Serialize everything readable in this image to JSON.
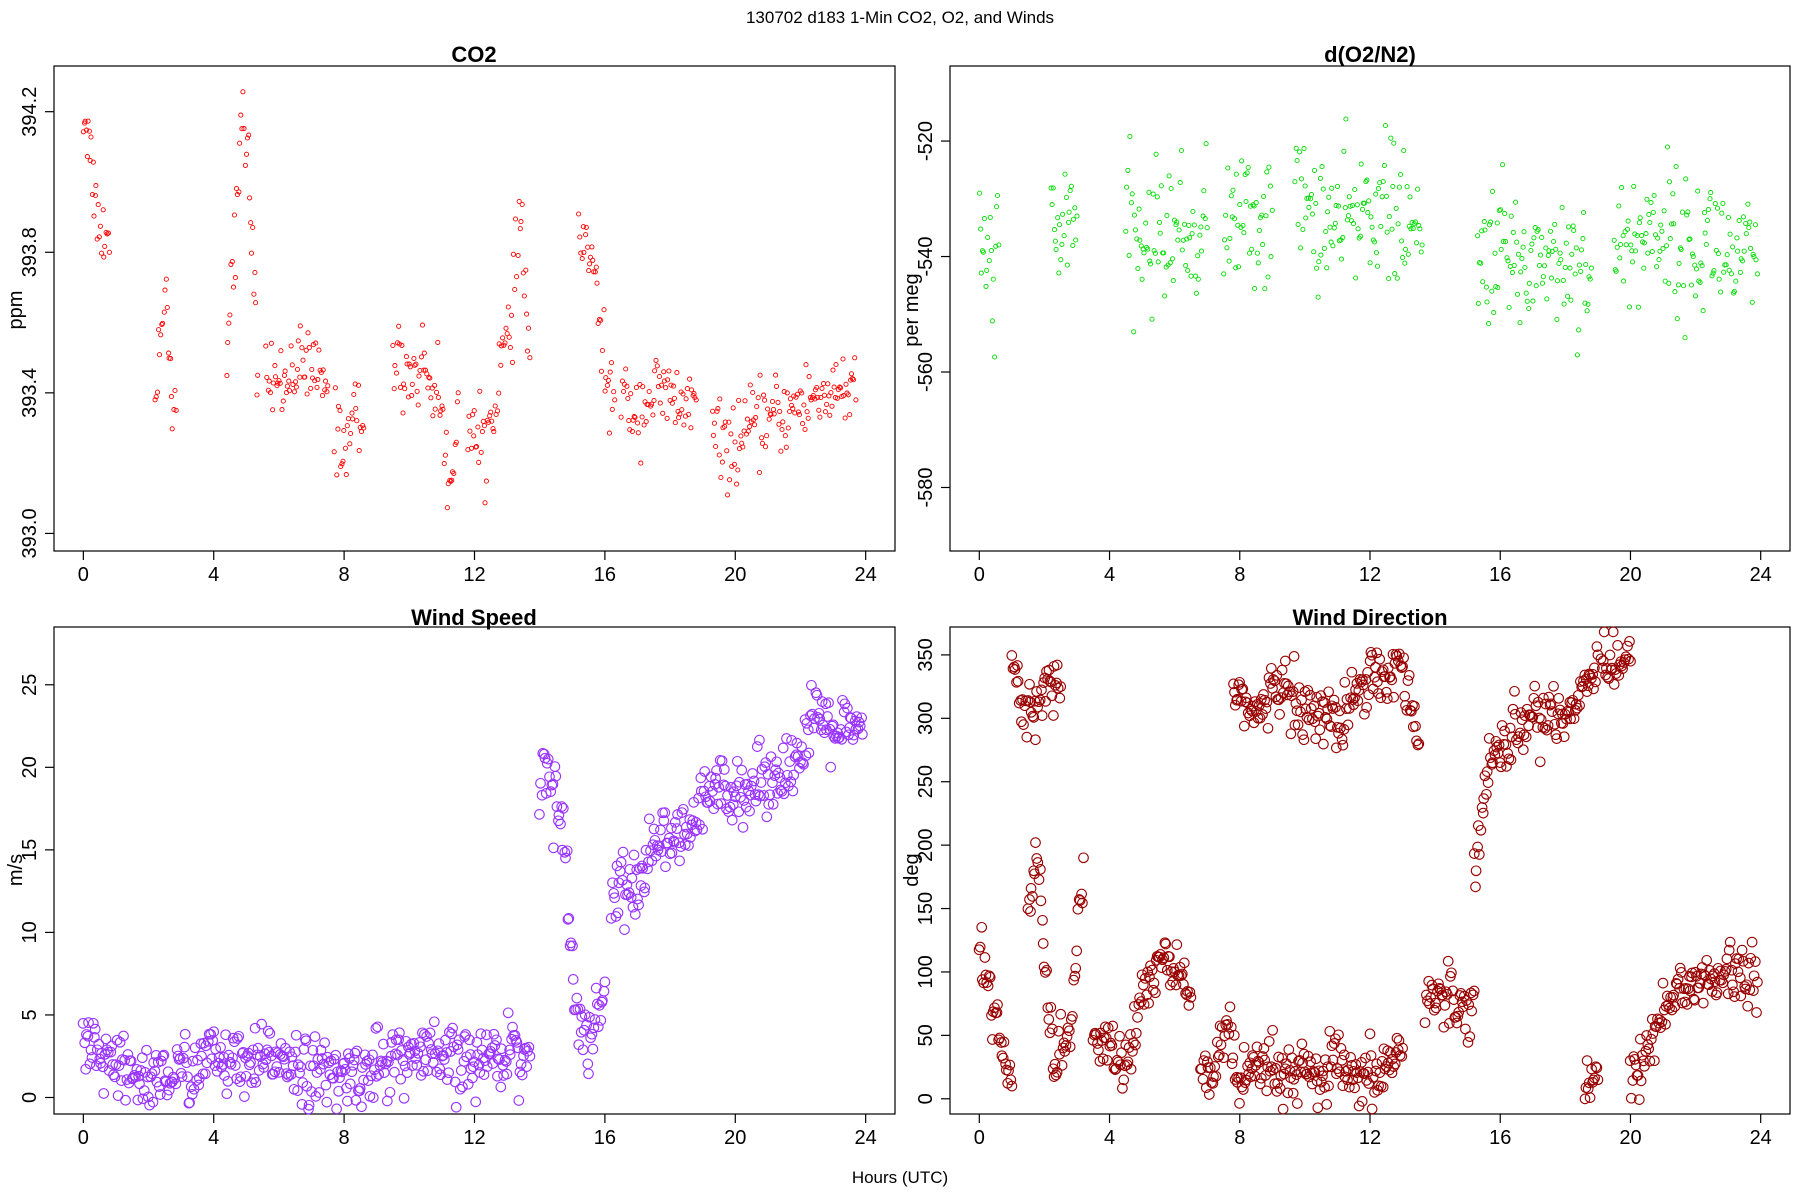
{
  "figure": {
    "title": "130702   d183   1-Min CO2, O2, and Winds",
    "xlabel": "Hours (UTC)"
  },
  "chart_data": [
    {
      "type": "scatter",
      "title": "CO2",
      "xlabel": "Hours (UTC)",
      "ylabel": "ppm",
      "xlim": [
        -0.9,
        24.9
      ],
      "ylim": [
        392.95,
        394.33
      ],
      "xticks": [
        0,
        4,
        8,
        12,
        16,
        20,
        24
      ],
      "yticks": [
        393.0,
        393.4,
        393.8,
        394.2
      ],
      "ytick_labels": [
        "393.0",
        "393.4",
        "393.8",
        "394.2"
      ],
      "color": "#ff0000",
      "marker_size": "small",
      "segments": [
        {
          "x": [
            0.0,
            0.15,
            0.3,
            0.45,
            0.6,
            0.8
          ],
          "y": [
            394.2,
            394.15,
            394.0,
            393.9,
            393.85,
            393.8
          ]
        },
        {
          "x": [
            2.2,
            2.4,
            2.55,
            2.7,
            2.85
          ],
          "y": [
            393.45,
            393.6,
            393.7,
            393.4,
            393.35
          ]
        },
        {
          "x": [
            4.4,
            4.7,
            4.9,
            5.1,
            5.35
          ],
          "y": [
            393.55,
            393.9,
            394.2,
            394.0,
            393.45
          ]
        },
        {
          "x": [
            5.6,
            6.0,
            6.5,
            7.0,
            7.5
          ],
          "y": [
            393.45,
            393.42,
            393.48,
            393.46,
            393.42
          ]
        },
        {
          "x": [
            7.7,
            8.0,
            8.3,
            8.6
          ],
          "y": [
            393.3,
            393.25,
            393.35,
            393.3
          ]
        },
        {
          "x": [
            9.5,
            10.0,
            10.5,
            11.0,
            11.2,
            11.5
          ],
          "y": [
            393.5,
            393.45,
            393.48,
            393.35,
            393.1,
            393.4
          ]
        },
        {
          "x": [
            11.8,
            12.1,
            12.5,
            12.8,
            13.1,
            13.4,
            13.7
          ],
          "y": [
            393.3,
            393.25,
            393.3,
            393.5,
            393.55,
            393.9,
            393.5
          ]
        },
        {
          "x": [
            15.2,
            15.5,
            15.8,
            16.0,
            16.3
          ],
          "y": [
            393.85,
            393.8,
            393.65,
            393.45,
            393.38
          ]
        },
        {
          "x": [
            16.5,
            17.0,
            17.5,
            18.0,
            18.5,
            18.8
          ],
          "y": [
            393.38,
            393.35,
            393.4,
            393.38,
            393.36,
            393.38
          ]
        },
        {
          "x": [
            19.3,
            19.8,
            20.3,
            20.8,
            21.3,
            21.8,
            22.3,
            22.8,
            23.3,
            23.7
          ],
          "y": [
            393.28,
            393.24,
            393.28,
            393.32,
            393.33,
            393.36,
            393.38,
            393.4,
            393.42,
            393.38
          ]
        }
      ]
    },
    {
      "type": "scatter",
      "title": "d(O2/N2)",
      "xlabel": "Hours (UTC)",
      "ylabel": "per meg",
      "xlim": [
        -0.9,
        24.9
      ],
      "ylim": [
        -591,
        -507
      ],
      "xticks": [
        0,
        4,
        8,
        12,
        16,
        20,
        24
      ],
      "yticks": [
        -520,
        -540,
        -560,
        -580
      ],
      "ytick_labels": [
        "-520",
        "-540",
        "-560",
        "-580"
      ],
      "color": "#00dd00",
      "marker_size": "small",
      "segments": [
        {
          "x": [
            0.0,
            0.2,
            0.4,
            0.6
          ],
          "y": [
            -538,
            -540,
            -542,
            -538
          ]
        },
        {
          "x": [
            2.2,
            2.5,
            2.8,
            3.0
          ],
          "y": [
            -535,
            -538,
            -530,
            -533
          ]
        },
        {
          "x": [
            4.5,
            5.0,
            5.5,
            6.0,
            6.5,
            7.0
          ],
          "y": [
            -537,
            -538,
            -536,
            -535,
            -537,
            -535
          ]
        },
        {
          "x": [
            7.5,
            8.0,
            8.5,
            9.0
          ],
          "y": [
            -534,
            -533,
            -535,
            -532
          ]
        },
        {
          "x": [
            9.7,
            10.2,
            10.7,
            11.2,
            11.7,
            12.2,
            12.7,
            13.2,
            13.6
          ],
          "y": [
            -530,
            -532,
            -534,
            -535,
            -533,
            -530,
            -532,
            -536,
            -538
          ]
        },
        {
          "x": [
            15.3,
            15.8,
            16.3,
            16.8,
            17.3,
            17.8,
            18.3,
            18.8
          ],
          "y": [
            -542,
            -538,
            -540,
            -542,
            -539,
            -541,
            -540,
            -542
          ]
        },
        {
          "x": [
            19.5,
            20.0,
            20.5,
            21.0,
            21.5,
            22.0,
            22.5,
            23.0,
            23.5,
            23.9
          ],
          "y": [
            -540,
            -538,
            -536,
            -534,
            -538,
            -540,
            -536,
            -540,
            -541,
            -543
          ]
        }
      ]
    },
    {
      "type": "scatter",
      "title": "Wind Speed",
      "xlabel": "Hours (UTC)",
      "ylabel": "m/s",
      "xlim": [
        -0.9,
        24.9
      ],
      "ylim": [
        -1.0,
        28.5
      ],
      "xticks": [
        0,
        4,
        8,
        12,
        16,
        20,
        24
      ],
      "yticks": [
        0,
        5,
        10,
        15,
        20,
        25
      ],
      "ytick_labels": [
        "0",
        "5",
        "10",
        "15",
        "20",
        "25"
      ],
      "color": "#9933ff",
      "marker_size": "large",
      "segments": [
        {
          "x": [
            0.0,
            1.0,
            2.0,
            3.0,
            4.0,
            5.0,
            6.0,
            7.0,
            8.0,
            9.0,
            10.0,
            11.0,
            12.0,
            13.0,
            13.7
          ],
          "y": [
            3.2,
            1.5,
            1.2,
            1.5,
            2.5,
            1.5,
            2.8,
            1.5,
            1.2,
            2.0,
            2.5,
            2.2,
            2.0,
            3.0,
            2.5
          ]
        },
        {
          "x": [
            14.0,
            14.2,
            14.5,
            14.8,
            15.0,
            15.2,
            15.5,
            15.8,
            16.0
          ],
          "y": [
            18.0,
            20.5,
            18.0,
            15.0,
            9.0,
            4.5,
            3.5,
            5.0,
            7.0
          ]
        },
        {
          "x": [
            16.2,
            16.5,
            17.0,
            17.5,
            18.0,
            18.5,
            19.0,
            19.5,
            20.0,
            20.5,
            21.0,
            21.5,
            22.0,
            22.5,
            23.0,
            23.5,
            23.9
          ],
          "y": [
            12.0,
            13.5,
            12.0,
            16.0,
            15.0,
            16.0,
            17.5,
            19.0,
            19.0,
            18.5,
            19.5,
            20.0,
            20.5,
            23.0,
            22.5,
            22.0,
            22.0
          ]
        }
      ]
    },
    {
      "type": "scatter",
      "title": "Wind Direction",
      "xlabel": "Hours (UTC)",
      "ylabel": "deg",
      "xlim": [
        -0.9,
        24.9
      ],
      "ylim": [
        -12,
        372
      ],
      "xticks": [
        0,
        4,
        8,
        12,
        16,
        20,
        24
      ],
      "yticks": [
        0,
        50,
        100,
        150,
        200,
        250,
        300,
        350
      ],
      "ytick_labels": [
        "0",
        "50",
        "100",
        "150",
        "200",
        "250",
        "300",
        "350"
      ],
      "color": "#990000",
      "marker_size": "large",
      "segments": [
        {
          "x": [
            0.0,
            0.2,
            0.4,
            0.6,
            0.8,
            1.0
          ],
          "y": [
            115,
            100,
            70,
            50,
            30,
            10
          ]
        },
        {
          "x": [
            1.0,
            1.2,
            1.4,
            2.0,
            2.2,
            2.5
          ],
          "y": [
            340,
            320,
            300,
            320,
            330,
            325
          ]
        },
        {
          "x": [
            1.5,
            1.8,
            2.0,
            2.3,
            2.8,
            3.2
          ],
          "y": [
            150,
            200,
            100,
            30,
            50,
            190
          ]
        },
        {
          "x": [
            3.5,
            4.0,
            4.5,
            5.0,
            5.5,
            6.0,
            6.5
          ],
          "y": [
            40,
            45,
            20,
            80,
            110,
            100,
            80
          ]
        },
        {
          "x": [
            6.8,
            7.2,
            7.6,
            8.0,
            8.5,
            9.0,
            9.5,
            10.0,
            10.5,
            11.0,
            11.5,
            12.0,
            12.5,
            13.0
          ],
          "y": [
            30,
            20,
            60,
            10,
            20,
            25,
            15,
            20,
            15,
            30,
            10,
            15,
            25,
            40
          ]
        },
        {
          "x": [
            7.8,
            8.2,
            8.6,
            9.0,
            9.5,
            10.0,
            10.5,
            11.0,
            11.5,
            12.0,
            12.5,
            13.0,
            13.5
          ],
          "y": [
            330,
            310,
            300,
            320,
            330,
            300,
            310,
            290,
            320,
            340,
            330,
            345,
            280
          ]
        },
        {
          "x": [
            13.7,
            14.0,
            14.5,
            15.0,
            15.2
          ],
          "y": [
            80,
            78,
            80,
            75,
            85
          ]
        },
        {
          "x": [
            15.2,
            15.5,
            15.8,
            16.0,
            16.5,
            17.0,
            17.5,
            18.0,
            18.5,
            19.0
          ],
          "y": [
            180,
            240,
            270,
            280,
            290,
            300,
            310,
            300,
            320,
            350
          ]
        },
        {
          "x": [
            18.6,
            18.8,
            19.0
          ],
          "y": [
            10,
            25,
            15
          ]
        },
        {
          "x": [
            19.1,
            19.5,
            20.0
          ],
          "y": [
            350,
            340,
            345
          ]
        },
        {
          "x": [
            20.0,
            20.5,
            21.0,
            21.5,
            22.0,
            22.5,
            23.0,
            23.5,
            23.9
          ],
          "y": [
            10,
            40,
            70,
            85,
            95,
            90,
            100,
            95,
            92
          ]
        }
      ]
    }
  ]
}
